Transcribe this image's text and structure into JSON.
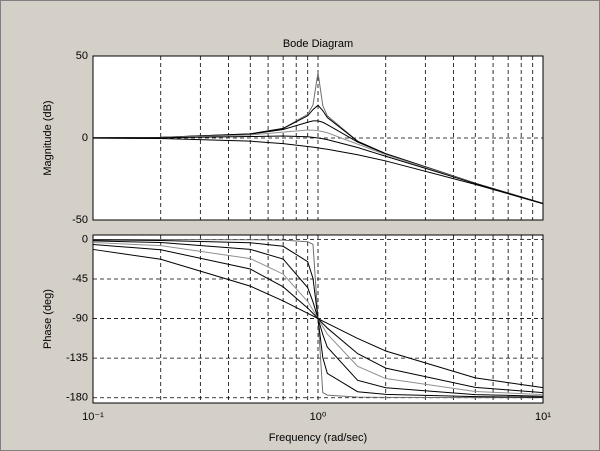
{
  "chart_data": [
    {
      "type": "line",
      "title": "Bode Diagram",
      "ylabel": "Magnitude (dB)",
      "xscale": "log",
      "grid": true,
      "x": [
        0.1,
        0.2,
        0.5,
        0.7,
        0.9,
        0.95,
        1,
        1.05,
        1.1,
        1.5,
        2,
        5,
        10
      ],
      "xlim": [
        0.1,
        10
      ],
      "xticks": [
        0.1,
        1,
        10
      ],
      "xminorticks": [
        0.2,
        0.3,
        0.4,
        0.5,
        0.6,
        0.7,
        0.8,
        0.9,
        2,
        3,
        4,
        5,
        6,
        7,
        8,
        9
      ],
      "ylim": [
        -50,
        50
      ],
      "yticks": [
        -50,
        0,
        50
      ],
      "series": [
        {
          "color": "#707070",
          "values": [
            0.09,
            0.35,
            2.5,
            5.85,
            14.42,
            20.18,
            40,
            19.74,
            13.54,
            -1.94,
            -9.54,
            -27.6,
            -39.91
          ]
        },
        {
          "color": "#000000",
          "values": [
            0.09,
            0.35,
            2.48,
            5.77,
            13.55,
            17.32,
            20,
            16.67,
            12.5,
            -2.0,
            -9.56,
            -27.61,
            -39.91
          ]
        },
        {
          "color": "#000000",
          "values": [
            0.08,
            0.34,
            2.33,
            5.17,
            9.63,
            10.42,
            10.46,
            9.6,
            8.15,
            -2.47,
            -9.71,
            -27.62,
            -39.92
          ]
        },
        {
          "color": "#909090",
          "values": [
            0.07,
            0.29,
            1.85,
            3.6,
            4.85,
            4.76,
            4.44,
            3.9,
            3.19,
            -3.75,
            -10.19,
            -27.67,
            -39.93
          ]
        },
        {
          "color": "#000000",
          "values": [
            0.04,
            0.17,
            0.9,
            1.25,
            0.73,
            0.4,
            0,
            -0.47,
            -0.98,
            -5.81,
            -11.14,
            -27.79,
            -39.96
          ]
        },
        {
          "color": "#000000",
          "values": [
            -0.09,
            -0.34,
            -1.94,
            -3.46,
            -5.15,
            -5.59,
            -6.02,
            -6.45,
            -6.89,
            -10.24,
            -13.98,
            -28.3,
            -40.09
          ]
        }
      ]
    },
    {
      "type": "line",
      "ylabel": "Phase (deg)",
      "xlabel": "Frequency (rad/sec)",
      "xscale": "log",
      "grid": true,
      "x": [
        0.1,
        0.2,
        0.5,
        0.7,
        0.9,
        0.95,
        1,
        1.05,
        1.1,
        1.5,
        2,
        5,
        10
      ],
      "xlim": [
        0.1,
        10
      ],
      "xticks": [
        {
          "value": 0.1,
          "label": "10⁻¹"
        },
        {
          "value": 1,
          "label": "10⁰"
        },
        {
          "value": 10,
          "label": "10¹"
        }
      ],
      "xminorticks": [
        0.2,
        0.3,
        0.4,
        0.5,
        0.6,
        0.7,
        0.8,
        0.9,
        2,
        3,
        4,
        5,
        6,
        7,
        8,
        9
      ],
      "ylim": [
        -186,
        5
      ],
      "yticks": [
        0,
        -45,
        -90,
        -135,
        -180
      ],
      "series": [
        {
          "color": "#707070",
          "values": [
            -0.06,
            -0.12,
            -0.38,
            -0.79,
            -2.71,
            -5.57,
            -90,
            -174.15,
            -177.0,
            -179.31,
            -179.62,
            -179.88,
            -179.94
          ]
        },
        {
          "color": "#000000",
          "values": [
            -0.58,
            -1.19,
            -3.81,
            -7.81,
            -25.35,
            -44.26,
            -90,
            -134.31,
            -152.35,
            -173.16,
            -176.19,
            -178.81,
            -179.42
          ]
        },
        {
          "color": "#000000",
          "values": [
            -1.74,
            -3.58,
            -11.31,
            -22.38,
            -54.87,
            -71.11,
            -90,
            -108.03,
            -122.47,
            -160.2,
            -168.69,
            -176.42,
            -178.26
          ]
        },
        {
          "color": "#909090",
          "values": [
            -3.47,
            -7.13,
            -21.8,
            -39.47,
            -70.61,
            -80.29,
            -90,
            -99.24,
            -107.65,
            -144.25,
            -158.2,
            -172.87,
            -176.53
          ]
        },
        {
          "color": "#000000",
          "values": [
            -5.77,
            -11.77,
            -33.69,
            -53.93,
            -78.08,
            -84.14,
            -90,
            -95.58,
            -100.81,
            -129.81,
            -146.31,
            -168.23,
            -174.23
          ]
        },
        {
          "color": "#000000",
          "values": [
            -11.42,
            -22.62,
            -53.13,
            -69.98,
            -83.98,
            -87.06,
            -90,
            -92.8,
            -95.45,
            -112.62,
            -126.87,
            -157.38,
            -168.58
          ]
        }
      ]
    }
  ]
}
